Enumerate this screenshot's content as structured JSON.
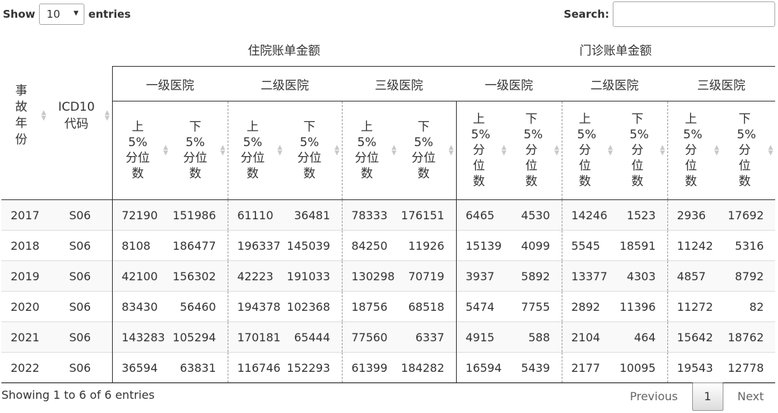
{
  "length_control": {
    "prefix": "Show",
    "selected": "10",
    "suffix": "entries"
  },
  "search": {
    "label": "Search:",
    "value": ""
  },
  "table": {
    "header_groups": [
      "住院账单金额",
      "门诊账单金额"
    ],
    "header_levels": [
      "一级医院",
      "二级医院",
      "三级医院",
      "一级医院",
      "二级医院",
      "三级医院"
    ],
    "col_year": "事故年份",
    "col_icd": "ICD10代码",
    "col_upper": "上5%分位数",
    "col_lower": "下5%分位数",
    "rows": [
      [
        "2017",
        "S06",
        "72190",
        "151986",
        "61110",
        "36481",
        "78333",
        "176151",
        "6465",
        "4530",
        "14246",
        "1523",
        "2936",
        "17692"
      ],
      [
        "2018",
        "S06",
        "8108",
        "186477",
        "196337",
        "145039",
        "84250",
        "11926",
        "15139",
        "4099",
        "5545",
        "18591",
        "11242",
        "5316"
      ],
      [
        "2019",
        "S06",
        "42100",
        "156302",
        "42223",
        "191033",
        "130298",
        "70719",
        "3937",
        "5892",
        "13377",
        "4303",
        "4857",
        "8792"
      ],
      [
        "2020",
        "S06",
        "83430",
        "56460",
        "194378",
        "102368",
        "18756",
        "68518",
        "5474",
        "7755",
        "2892",
        "11396",
        "11272",
        "82"
      ],
      [
        "2021",
        "S06",
        "143283",
        "105294",
        "170181",
        "65444",
        "77560",
        "6337",
        "4915",
        "588",
        "2104",
        "464",
        "15642",
        "18762"
      ],
      [
        "2022",
        "S06",
        "36594",
        "63831",
        "116746",
        "152293",
        "61399",
        "184282",
        "16594",
        "5439",
        "2177",
        "10095",
        "19543",
        "12778"
      ]
    ]
  },
  "footer": {
    "info": "Showing 1 to 6 of 6 entries",
    "previous": "Previous",
    "current_page": "1",
    "next": "Next"
  }
}
